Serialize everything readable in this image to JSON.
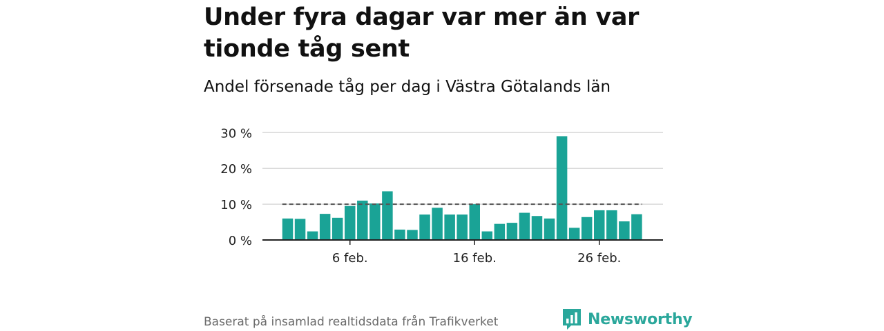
{
  "title": "Under fyra dagar var mer än var tionde tåg sent",
  "subtitle": "Andel försenade tåg per dag i Västra Götalands län",
  "source": "Baserat på insamlad realtidsdata från Trafikverket",
  "brand": {
    "name": "Newsworthy",
    "icon": "newsworthy-bar-chart-icon",
    "color": "#2aa79b"
  },
  "colors": {
    "bars": "#1aa396",
    "reference_line": "#555555",
    "grid": "#d9d9d9",
    "axis": "#222222"
  },
  "chart_data": {
    "type": "bar",
    "title": "Under fyra dagar var mer än var tionde tåg sent",
    "subtitle": "Andel försenade tåg per dag i Västra Götalands län",
    "xlabel": "",
    "ylabel": "",
    "x_start_day": 1,
    "x_ticks": [
      {
        "day": 6,
        "label": "6 feb."
      },
      {
        "day": 16,
        "label": "16 feb."
      },
      {
        "day": 26,
        "label": "26 feb."
      }
    ],
    "values": [
      6,
      5.9,
      2.4,
      7.3,
      6.2,
      9.5,
      11,
      10.2,
      13.6,
      2.9,
      2.8,
      7.1,
      9,
      7.1,
      7.1,
      10,
      2.4,
      4.5,
      4.8,
      7.6,
      6.7,
      6,
      29,
      3.4,
      6.4,
      8.3,
      8.3,
      5.2,
      7.2
    ],
    "ylim": [
      0,
      30
    ],
    "y_ticks": [
      {
        "value": 0,
        "label": "0 %"
      },
      {
        "value": 10,
        "label": "10 %"
      },
      {
        "value": 20,
        "label": "20 %"
      },
      {
        "value": 30,
        "label": "30 %"
      }
    ],
    "reference_line": {
      "value": 10,
      "style": "dashed"
    },
    "grid": true,
    "legend": "none"
  }
}
